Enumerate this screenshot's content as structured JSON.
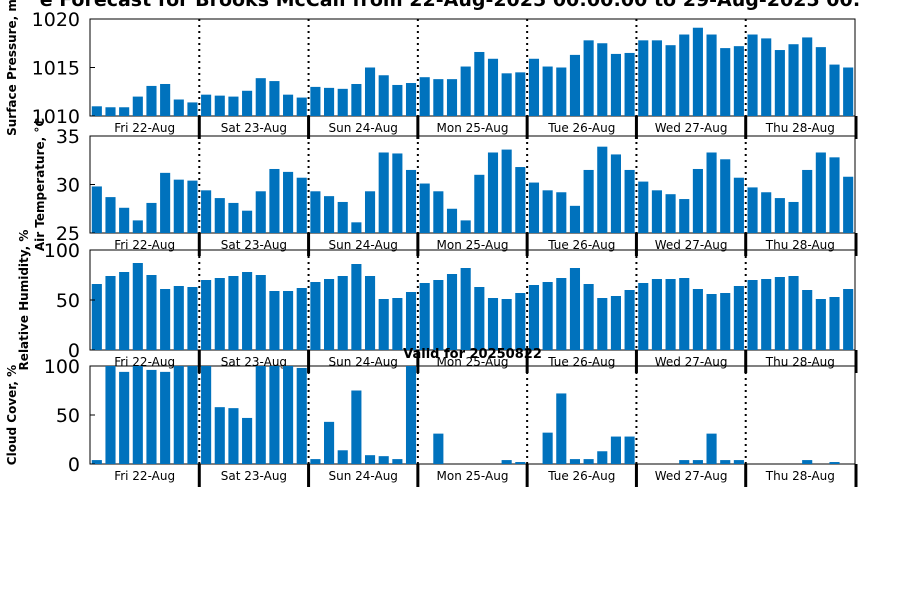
{
  "title": "e Forecast for Brooks McCall from 22-Aug-2025 00:00:00 to 29-Aug-2025 00:",
  "bar_color": "#0072bd",
  "chart_data": [
    {
      "type": "bar",
      "ylabel": "Surface Pressure, m",
      "ylim": [
        1010,
        1020
      ],
      "yticks": [
        "1010",
        "1015",
        "1020"
      ],
      "xticklabels": [
        "Fri 22-Aug",
        "Sat 23-Aug",
        "Sun 24-Aug",
        "Mon 25-Aug",
        "Tue 26-Aug",
        "Wed 27-Aug",
        "Thu 28-Aug"
      ],
      "values": [
        1011.0,
        1010.9,
        1010.9,
        1012.0,
        1013.1,
        1013.3,
        1011.7,
        1011.4,
        1012.2,
        1012.1,
        1012.0,
        1012.6,
        1013.9,
        1013.6,
        1012.2,
        1011.9,
        1013.0,
        1012.9,
        1012.8,
        1013.3,
        1015.0,
        1014.2,
        1013.2,
        1013.4,
        1014.0,
        1013.8,
        1013.8,
        1015.1,
        1016.6,
        1015.9,
        1014.4,
        1014.5,
        1015.9,
        1015.1,
        1015.0,
        1016.3,
        1017.8,
        1017.5,
        1016.4,
        1016.5,
        1017.8,
        1017.8,
        1017.3,
        1018.4,
        1019.1,
        1018.4,
        1017.0,
        1017.2,
        1018.4,
        1018.0,
        1016.8,
        1017.4,
        1018.1,
        1017.1,
        1015.3,
        1015.0
      ]
    },
    {
      "type": "bar",
      "ylabel": "Air Temperature, °C",
      "ylim": [
        25,
        35
      ],
      "yticks": [
        "25",
        "30",
        "35"
      ],
      "xticklabels": [
        "Fri 22-Aug",
        "Sat 23-Aug",
        "Sun 24-Aug",
        "Mon 25-Aug",
        "Tue 26-Aug",
        "Wed 27-Aug",
        "Thu 28-Aug"
      ],
      "values": [
        29.8,
        28.7,
        27.6,
        26.3,
        28.1,
        31.2,
        30.5,
        30.4,
        29.4,
        28.6,
        28.1,
        27.3,
        29.3,
        31.6,
        31.3,
        30.7,
        29.3,
        28.8,
        28.2,
        26.1,
        29.3,
        33.3,
        33.2,
        31.5,
        30.1,
        29.3,
        27.5,
        26.3,
        31.0,
        33.3,
        33.6,
        31.8,
        30.2,
        29.4,
        29.2,
        27.8,
        31.5,
        33.9,
        33.1,
        31.5,
        30.3,
        29.4,
        29.0,
        28.5,
        31.6,
        33.3,
        32.6,
        30.7,
        29.7,
        29.2,
        28.6,
        28.2,
        31.5,
        33.3,
        32.8,
        30.8
      ]
    },
    {
      "type": "bar",
      "ylabel": "Relative Humidity, %",
      "ylim": [
        0,
        100
      ],
      "yticks": [
        "0",
        "50",
        "100"
      ],
      "xticklabels": [
        "Fri 22-Aug",
        "Sat 23-Aug",
        "Sun 24-Aug",
        "Mon 25-Aug",
        "Tue 26-Aug",
        "Wed 27-Aug",
        "Thu 28-Aug"
      ],
      "values": [
        66,
        74,
        78,
        87,
        75,
        61,
        64,
        63,
        70,
        72,
        74,
        78,
        75,
        59,
        59,
        62,
        68,
        71,
        74,
        86,
        74,
        51,
        52,
        58,
        67,
        70,
        76,
        82,
        63,
        52,
        51,
        57,
        65,
        68,
        72,
        82,
        66,
        52,
        54,
        60,
        67,
        71,
        71,
        72,
        61,
        56,
        57,
        64,
        70,
        71,
        73,
        74,
        60,
        51,
        53,
        61
      ]
    },
    {
      "type": "bar",
      "subtitle": "Valid for 20250822",
      "ylabel": "Cloud Cover, %",
      "ylim": [
        0,
        100
      ],
      "yticks": [
        "0",
        "50",
        "100"
      ],
      "xticklabels": [
        "Fri 22-Aug",
        "Sat 23-Aug",
        "Sun 24-Aug",
        "Mon 25-Aug",
        "Tue 26-Aug",
        "Wed 27-Aug",
        "Thu 28-Aug"
      ],
      "values": [
        4,
        100,
        94,
        100,
        96,
        94,
        100,
        100,
        100,
        58,
        57,
        47,
        100,
        100,
        100,
        98,
        5,
        43,
        14,
        75,
        9,
        8,
        5,
        100,
        0,
        31,
        0,
        0,
        0,
        0,
        4,
        2,
        0,
        32,
        72,
        5,
        5,
        13,
        28,
        28,
        0,
        0,
        0,
        4,
        4,
        31,
        4,
        4,
        0,
        0,
        0,
        0,
        4,
        0,
        2,
        0
      ]
    }
  ]
}
